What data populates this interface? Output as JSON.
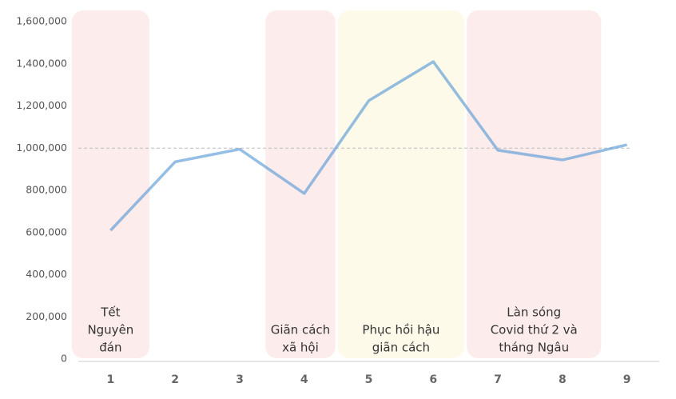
{
  "chart_data": {
    "type": "line",
    "categories": [
      "1",
      "2",
      "3",
      "4",
      "5",
      "6",
      "7",
      "8",
      "9"
    ],
    "values": [
      610000,
      935000,
      995000,
      785000,
      1225000,
      1410000,
      990000,
      944000,
      1016000
    ],
    "color": "#5b9bd5",
    "ylim": [
      0,
      1600000
    ],
    "yticks": [
      0,
      {
        "value": 200000,
        "label": "200,000"
      },
      {
        "value": 400000,
        "label": "400,000"
      },
      {
        "value": 600000,
        "label": "600,000"
      },
      {
        "value": 800000,
        "label": "800,000"
      },
      {
        "value": 1000000,
        "label": "1,000,000"
      },
      {
        "value": 1200000,
        "label": "1,200,000"
      },
      {
        "value": 1400000,
        "label": "1,400,000"
      },
      {
        "value": 1600000,
        "label": "1,600,000"
      }
    ],
    "reference_line": 1000000,
    "highlights": [
      {
        "from": 0,
        "to": 0,
        "color": "#fdecec",
        "label": [
          "Tết",
          "Nguyên",
          "đán"
        ]
      },
      {
        "from": 3,
        "to": 3,
        "color": "#fdecec",
        "label": [
          "Giãn cách",
          "xã hội"
        ]
      },
      {
        "from": 4,
        "to": 5,
        "color": "#fefaea",
        "label": [
          "Phục hồi hậu",
          "giãn cách"
        ]
      },
      {
        "from": 6,
        "to": 7,
        "color": "#fdecec",
        "label": [
          "Làn sóng",
          "Covid thứ 2 và",
          "tháng Ngâu"
        ]
      }
    ]
  }
}
